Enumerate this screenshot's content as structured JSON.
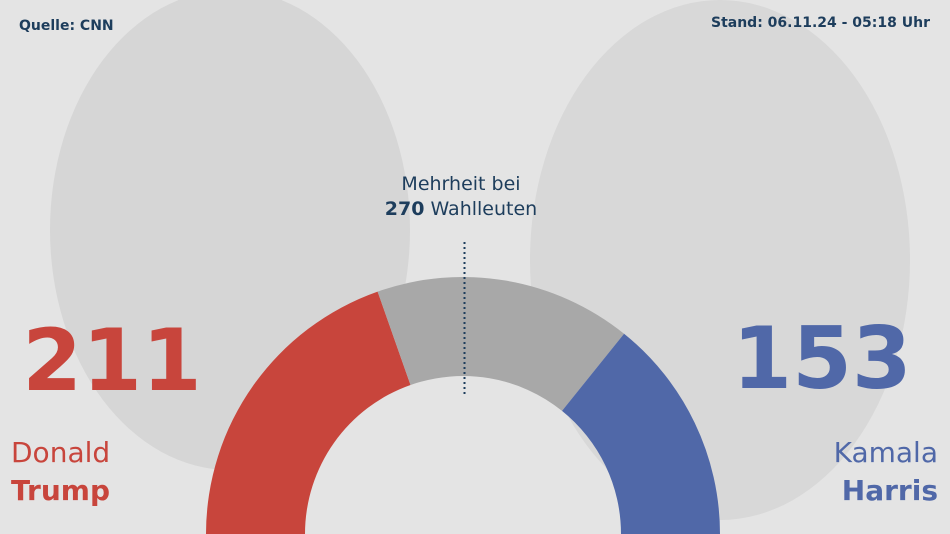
{
  "chart_data": {
    "type": "half-donut",
    "source": "Quelle: CNN",
    "timestamp": "Stand: 06.11.24 - 05:18 Uhr",
    "majority_label_top": "Mehrheit bei",
    "majority": 270,
    "majority_label_unit": "Wahlleuten",
    "segments": [
      {
        "value": 211,
        "color": "#c8453c",
        "first_name": "Donald",
        "last_name": "Trump"
      },
      {
        "value": 174,
        "color": "#a8a8a8"
      },
      {
        "value": 153,
        "color": "#5068a8",
        "first_name": "Kamala",
        "last_name": "Harris"
      }
    ]
  }
}
